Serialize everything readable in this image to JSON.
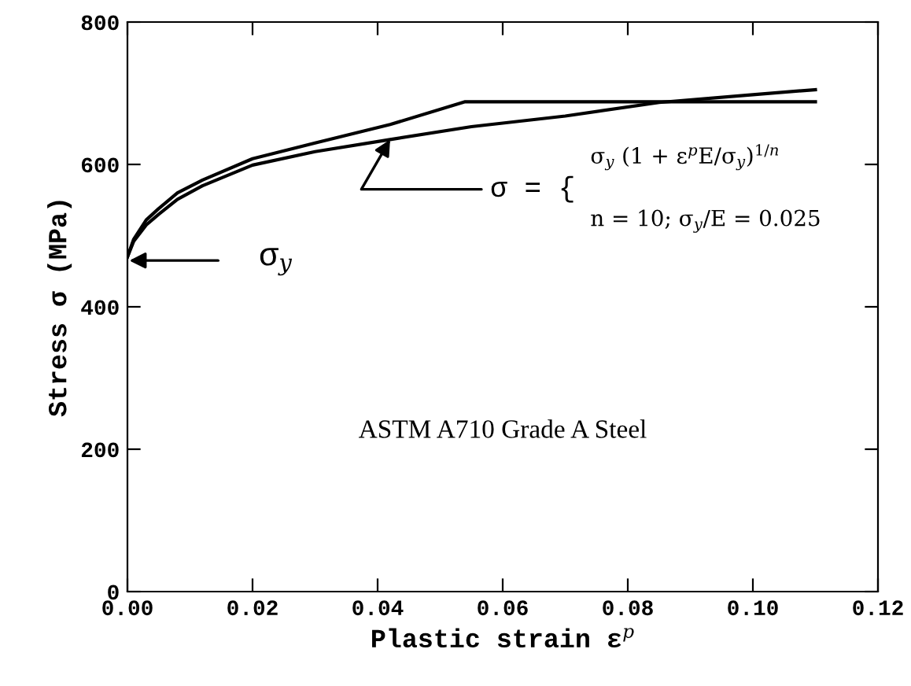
{
  "chart_data": {
    "type": "line",
    "xlabel": "Plastic strain ε$^{p}$",
    "ylabel": "Stress σ (MPa)",
    "series": [
      {
        "color": "#000000",
        "x": [
          0,
          0.001,
          0.003,
          0.005,
          0.008,
          0.012,
          0.02,
          0.03,
          0.042,
          0.054,
          0.11
        ],
        "values": [
          470,
          495,
          522,
          538,
          560,
          578,
          608,
          630,
          656,
          688,
          688
        ]
      },
      {
        "color": "#000000",
        "x": [
          0,
          0.001,
          0.003,
          0.005,
          0.008,
          0.012,
          0.02,
          0.03,
          0.042,
          0.055,
          0.07,
          0.085,
          0.1,
          0.11
        ],
        "values": [
          470,
          492,
          515,
          530,
          551,
          570,
          599,
          618,
          635,
          653,
          668,
          687,
          698,
          705
        ]
      }
    ],
    "xlim": [
      0,
      0.12
    ],
    "xticks": [
      {
        "value": 0,
        "label": "0.00"
      },
      {
        "value": 0.02,
        "label": "0.02"
      },
      {
        "value": 0.04,
        "label": "0.04"
      },
      {
        "value": 0.06,
        "label": "0.06"
      },
      {
        "value": 0.08,
        "label": "0.08"
      },
      {
        "value": 0.1,
        "label": "0.10"
      },
      {
        "value": 0.12,
        "label": "0.12"
      }
    ],
    "ylim": [
      0,
      800
    ],
    "yticks": [
      0,
      200,
      400,
      600,
      800
    ],
    "grid": false,
    "marker": "none",
    "line_style": "solid",
    "annotations": [
      "σ$_{y}$",
      {
        "text": "σ = {",
        "x": 0.042,
        "y": 635
      },
      "σ$_{y}$ (1 + ε$^{p}$E/σ$_{y}$)$^{1/n}$",
      "n = 10; σ$_{y}$/E = 0.025",
      "ASTM A710 Grade A Steel"
    ]
  }
}
